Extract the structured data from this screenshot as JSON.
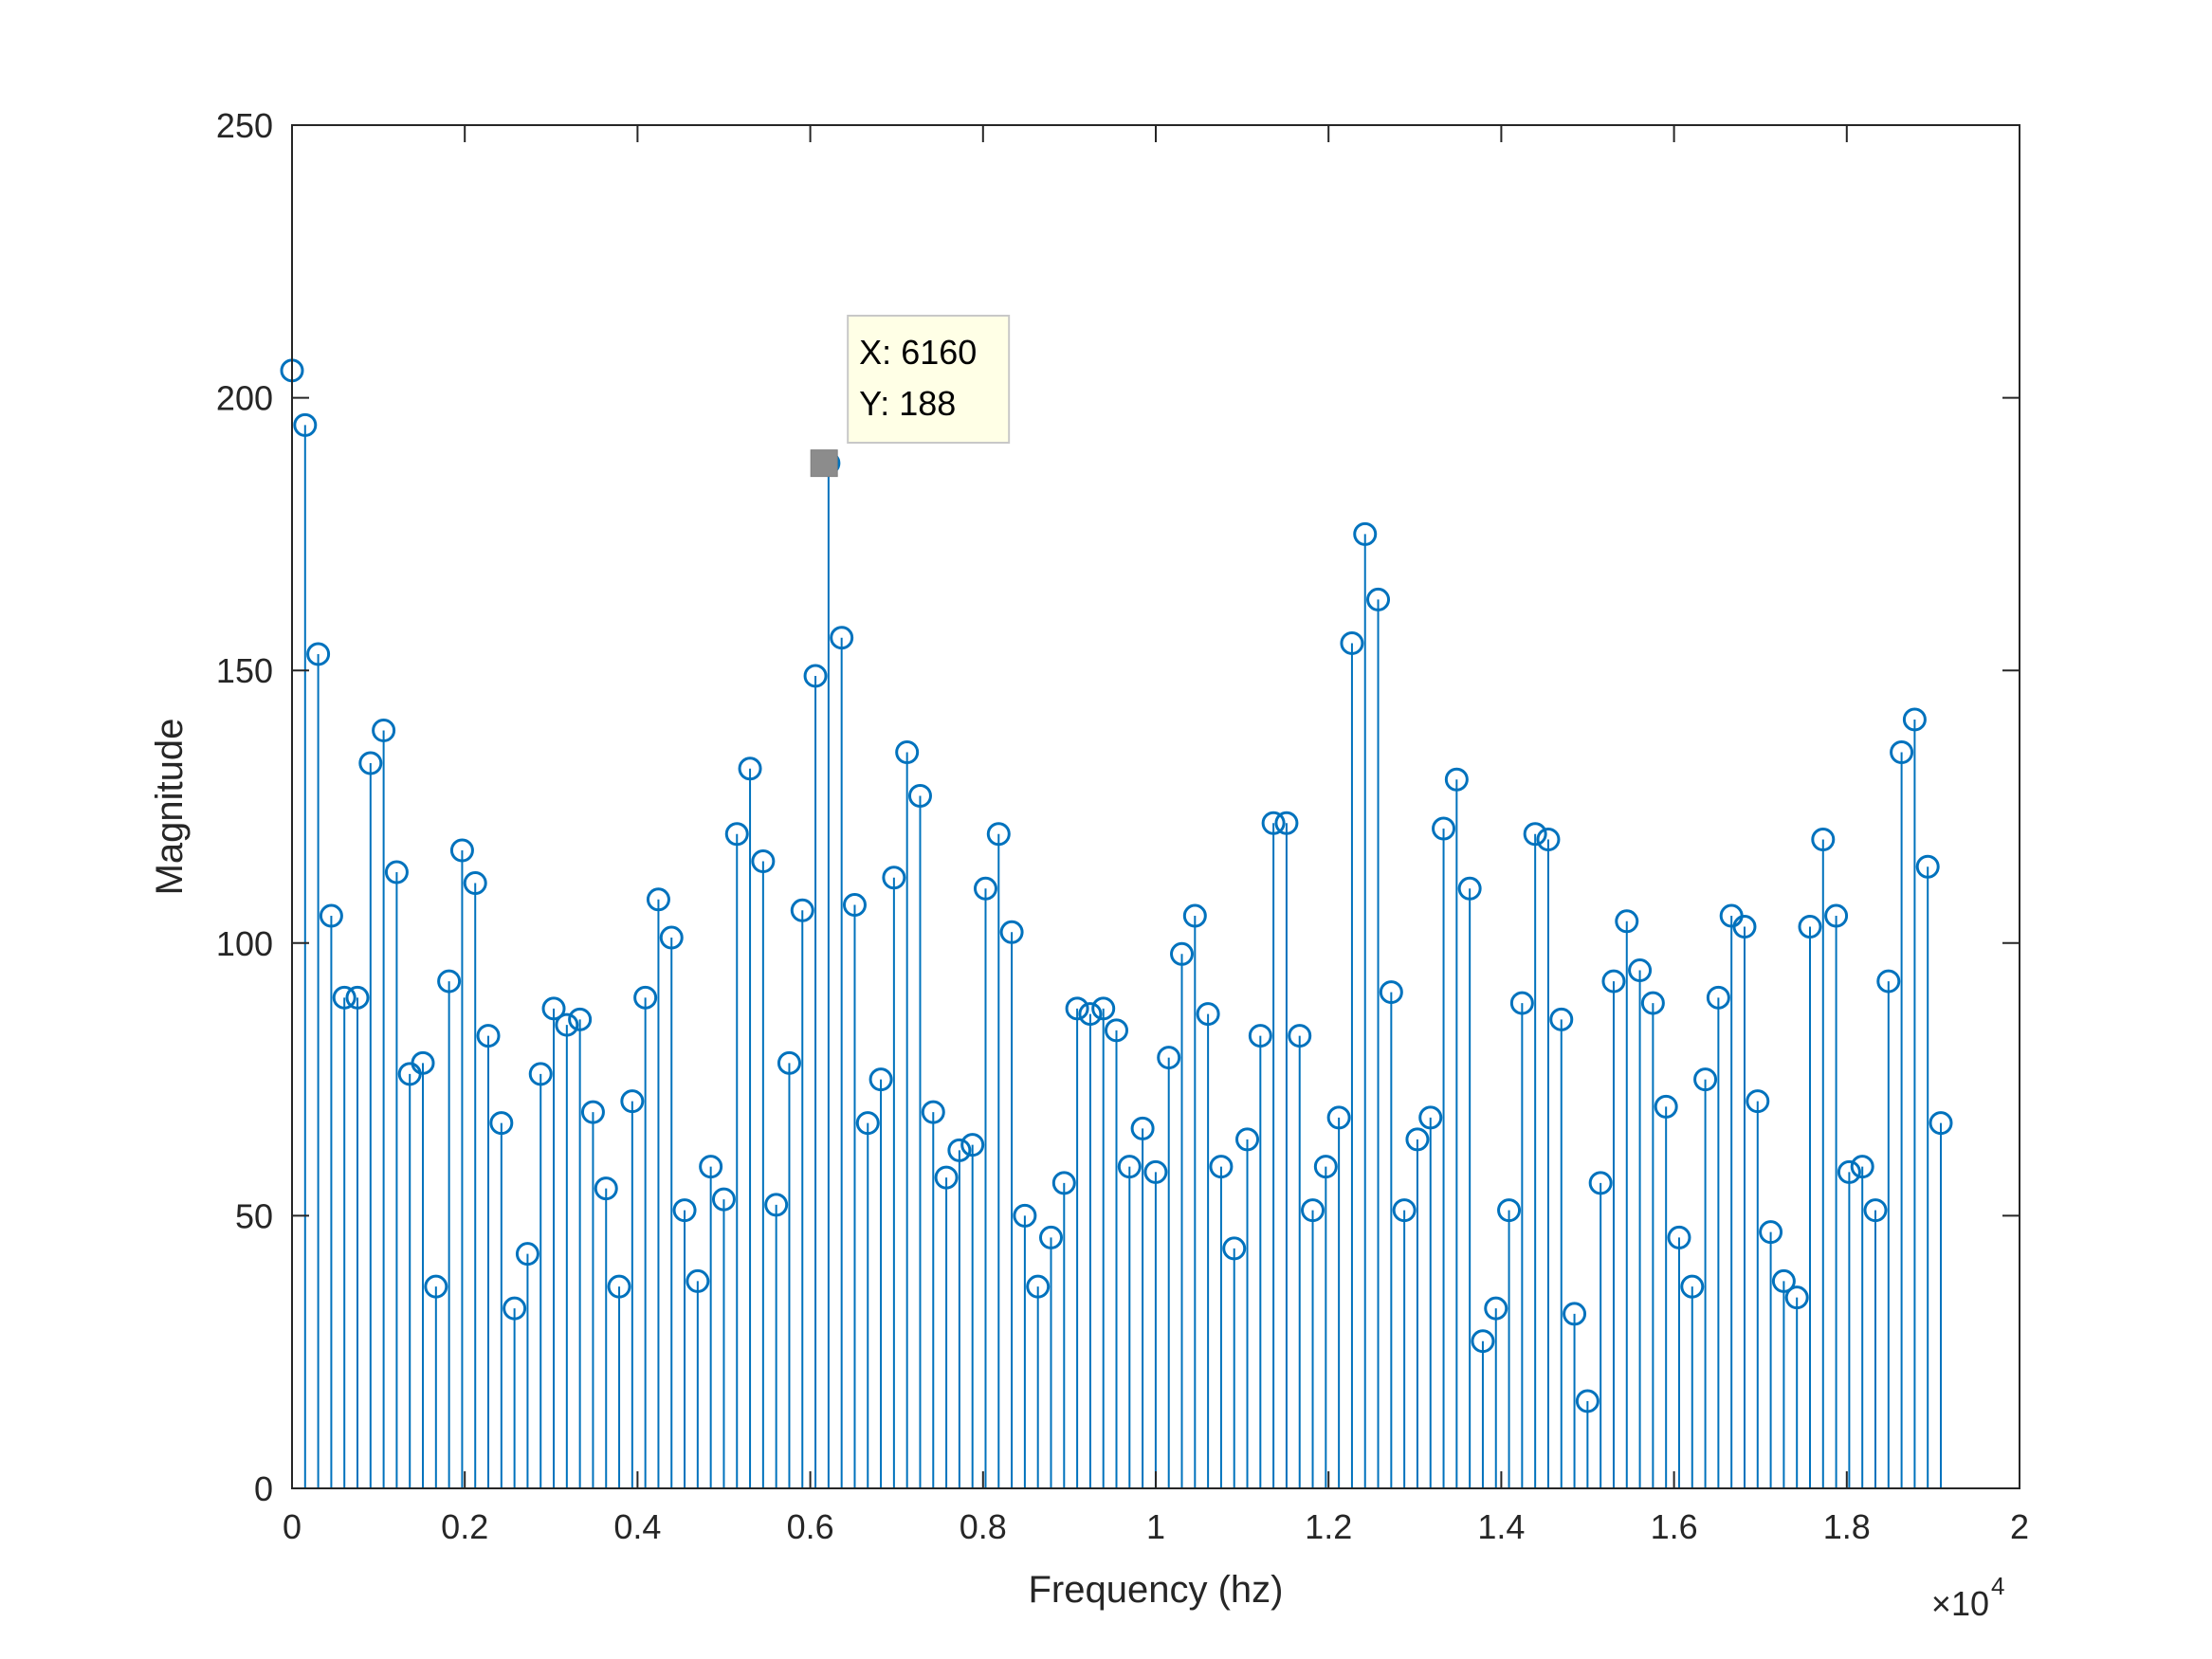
{
  "chart_data": {
    "type": "stem",
    "xlabel": "Frequency (hz)",
    "ylabel": "Magnitude",
    "x_exponent_label": "×10",
    "x_exponent_power": "4",
    "xlim": [
      0,
      20000
    ],
    "ylim": [
      0,
      250
    ],
    "x_ticks": [
      0,
      2000,
      4000,
      6000,
      8000,
      10000,
      12000,
      14000,
      16000,
      18000,
      20000
    ],
    "x_tick_labels": [
      "0",
      "0.2",
      "0.4",
      "0.6",
      "0.8",
      "1",
      "1.2",
      "1.4",
      "1.6",
      "1.8",
      "2"
    ],
    "y_ticks": [
      0,
      50,
      100,
      150,
      200,
      250
    ],
    "y_tick_labels": [
      "0",
      "50",
      "100",
      "150",
      "200",
      "250"
    ],
    "grid": false,
    "series_color": "#0072BD",
    "x_step": 151.5,
    "values": [
      205,
      195,
      153,
      105,
      90,
      90,
      133,
      139,
      113,
      76,
      78,
      37,
      93,
      117,
      111,
      83,
      67,
      33,
      43,
      76,
      88,
      85,
      86,
      69,
      55,
      37,
      71,
      90,
      108,
      101,
      51,
      38,
      59,
      53,
      120,
      132,
      115,
      52,
      78,
      106,
      149,
      188,
      156,
      107,
      67,
      75,
      112,
      135,
      127,
      69,
      57,
      62,
      63,
      110,
      120,
      102,
      50,
      37,
      46,
      56,
      88,
      87,
      88,
      84,
      59,
      66,
      58,
      79,
      98,
      105,
      87,
      59,
      44,
      64,
      83,
      122,
      122,
      83,
      51,
      59,
      68,
      155,
      175,
      163,
      91,
      51,
      64,
      68,
      121,
      130,
      110,
      27,
      33,
      51,
      89,
      120,
      119,
      86,
      32,
      16,
      56,
      93,
      104,
      95,
      89,
      70,
      46,
      37,
      75,
      90,
      105,
      103,
      71,
      47,
      38,
      35,
      103,
      119,
      105,
      58,
      59,
      51,
      93,
      135,
      141,
      114,
      67
    ],
    "datatip": {
      "x_label": "X: 6160",
      "y_label": "Y: 188",
      "x": 6160,
      "y": 188
    }
  }
}
